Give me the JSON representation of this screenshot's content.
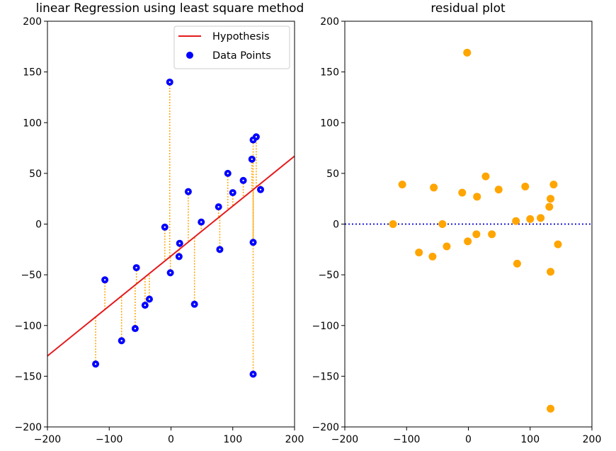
{
  "chart_data": [
    {
      "type": "scatter",
      "title": "linear Regression using least square method",
      "xlabel": "",
      "ylabel": "",
      "xlim": [
        -200,
        200
      ],
      "ylim": [
        -200,
        200
      ],
      "xticks": [
        -200,
        -100,
        0,
        100,
        200
      ],
      "yticks": [
        -200,
        -150,
        -100,
        -50,
        0,
        50,
        100,
        150,
        200
      ],
      "grid": false,
      "legend_position": "top-right",
      "legend": [
        "Hypothesis",
        "Data Points"
      ],
      "hypothesis": {
        "name": "Hypothesis",
        "color": "#e41a1c",
        "x": [
          -200,
          200
        ],
        "y": [
          -130,
          67
        ]
      },
      "points": {
        "name": "Data Points",
        "color": "#0000ff",
        "x": [
          -122,
          -107,
          -80,
          -58,
          -56,
          -42,
          -35,
          -10,
          -2,
          -1,
          13,
          14,
          28,
          38,
          49,
          77,
          79,
          92,
          100,
          117,
          131,
          133,
          133,
          133,
          138,
          145
        ],
        "y": [
          -138,
          -55,
          -115,
          -103,
          -43,
          -80,
          -74,
          -3,
          140,
          -48,
          -32,
          -19,
          32,
          -79,
          2,
          17,
          -25,
          50,
          31,
          43,
          64,
          83,
          -18,
          -148,
          86,
          34
        ]
      },
      "residual_line_color": "#ffa500"
    },
    {
      "type": "scatter",
      "title": "residual plot",
      "xlabel": "",
      "ylabel": "",
      "xlim": [
        -200,
        200
      ],
      "ylim": [
        -200,
        200
      ],
      "xticks": [
        -200,
        -100,
        0,
        100,
        200
      ],
      "yticks": [
        -200,
        -150,
        -100,
        -50,
        0,
        50,
        100,
        150,
        200
      ],
      "grid": false,
      "zero_line_color": "#0000cd",
      "points_color": "#ffa500",
      "x": [
        -122,
        -107,
        -80,
        -58,
        -56,
        -42,
        -35,
        -10,
        -2,
        -1,
        13,
        14,
        28,
        38,
        49,
        77,
        79,
        92,
        100,
        117,
        131,
        133,
        133,
        133,
        138,
        145
      ],
      "y": [
        0,
        39,
        -28,
        -32,
        36,
        0,
        -22,
        31,
        169,
        -17,
        -10,
        27,
        47,
        -10,
        34,
        3,
        -39,
        37,
        5,
        6,
        17,
        25,
        -47,
        -182,
        39,
        -20
      ]
    }
  ]
}
